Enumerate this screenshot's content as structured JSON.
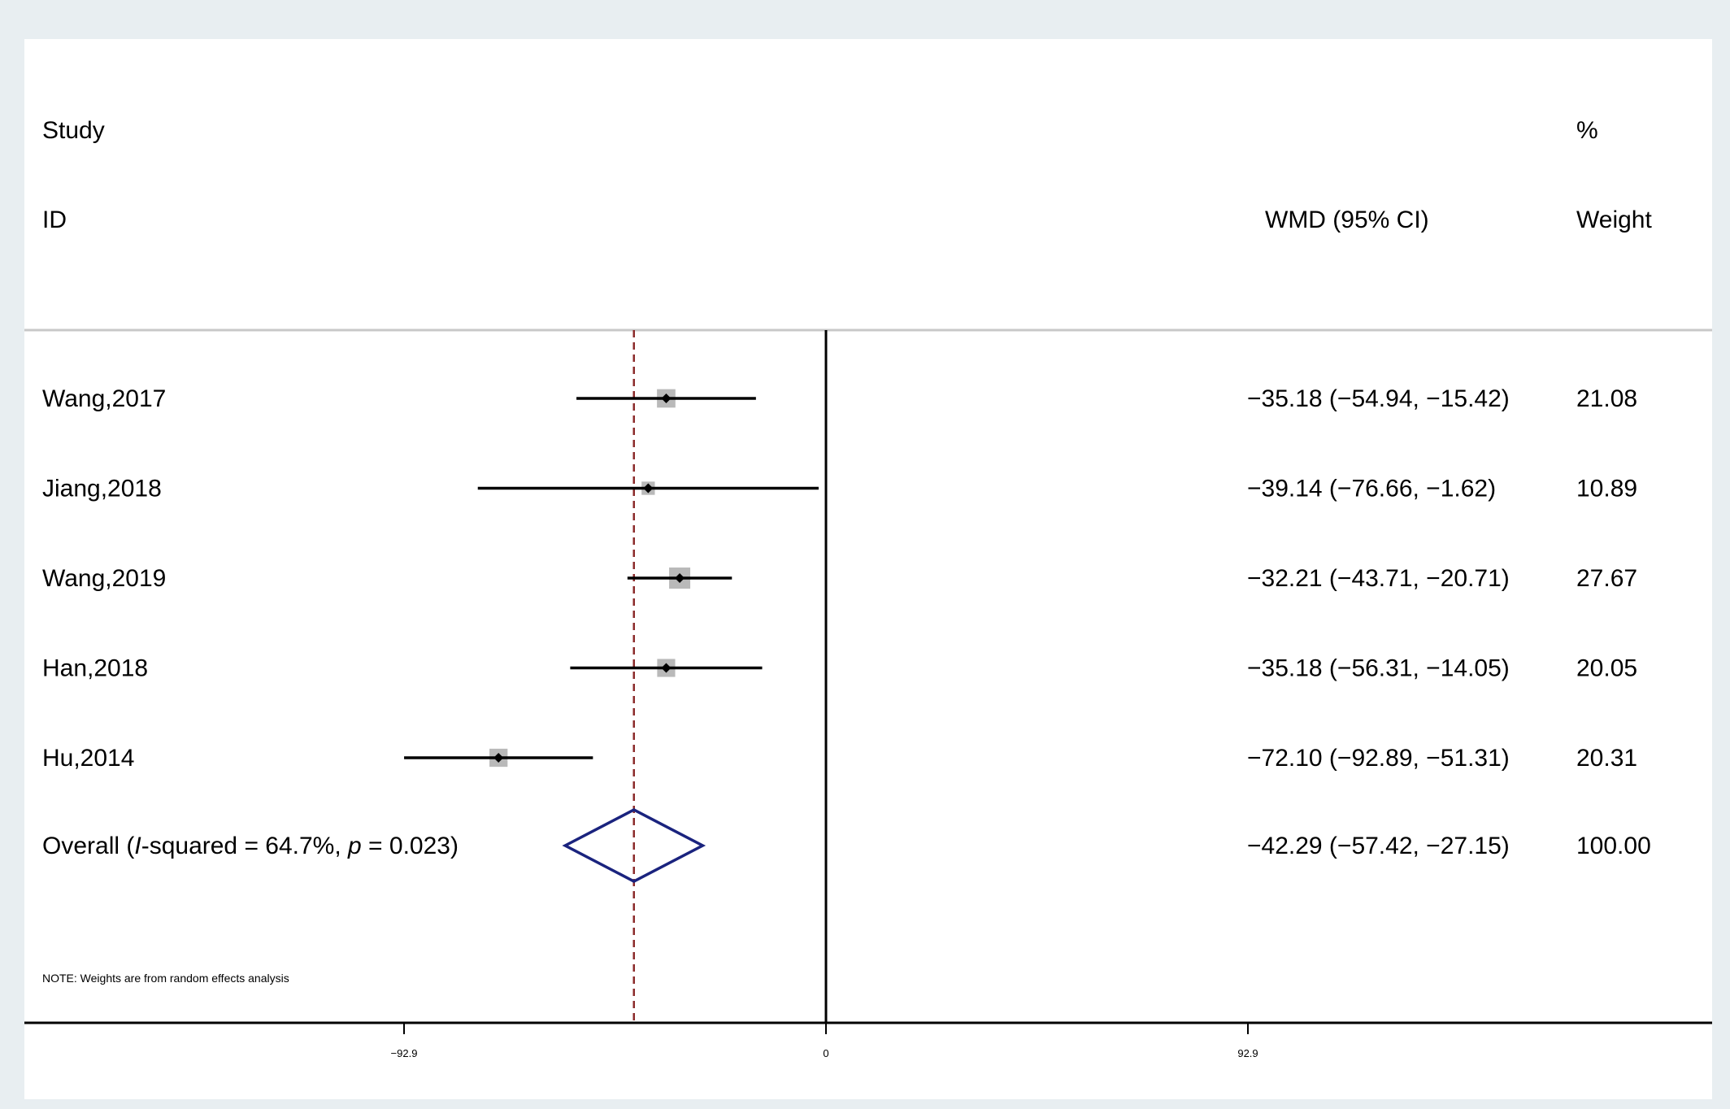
{
  "header": {
    "study_line1": "Study",
    "study_line2": "ID",
    "effect_label": "WMD (95% CI)",
    "weight_line1": "%",
    "weight_line2": "Weight"
  },
  "note": "NOTE: Weights are from random effects analysis",
  "colors": {
    "axis": "#000000",
    "ci_line": "#000000",
    "weight_box": "#b9b9b9",
    "point": "#000000",
    "reference_dashed": "#8b2a2a",
    "diamond": "#1a237e",
    "header_rule": "#c8c8c8"
  },
  "chart_data": {
    "type": "forest",
    "x_ticks": [
      {
        "value": -92.9,
        "label": "−92.9"
      },
      {
        "value": 0,
        "label": "0"
      },
      {
        "value": 92.9,
        "label": "92.9"
      }
    ],
    "xlim": [
      -175.6,
      192
    ],
    "null_line": 0,
    "overall_line": -42.29,
    "studies": [
      {
        "id": "Wang,2017",
        "effect": -35.18,
        "lower": -54.94,
        "upper": -15.42,
        "weight": 21.08,
        "ci_text": "−35.18 (−54.94, −15.42)",
        "weight_text": "21.08"
      },
      {
        "id": "Jiang,2018",
        "effect": -39.14,
        "lower": -76.66,
        "upper": -1.62,
        "weight": 10.89,
        "ci_text": "−39.14 (−76.66, −1.62)",
        "weight_text": "10.89"
      },
      {
        "id": "Wang,2019",
        "effect": -32.21,
        "lower": -43.71,
        "upper": -20.71,
        "weight": 27.67,
        "ci_text": "−32.21 (−43.71, −20.71)",
        "weight_text": "27.67"
      },
      {
        "id": "Han,2018",
        "effect": -35.18,
        "lower": -56.31,
        "upper": -14.05,
        "weight": 20.05,
        "ci_text": "−35.18 (−56.31, −14.05)",
        "weight_text": "20.05"
      },
      {
        "id": "Hu,2014",
        "effect": -72.1,
        "lower": -92.89,
        "upper": -51.31,
        "weight": 20.31,
        "ci_text": "−72.10 (−92.89, −51.31)",
        "weight_text": "20.31"
      }
    ],
    "overall": {
      "label_prefix": "Overall  (",
      "label_i": "I",
      "label_mid": "-squared = 64.7%, ",
      "label_p": "p",
      "label_suffix": " = 0.023)",
      "effect": -42.29,
      "lower": -57.42,
      "upper": -27.15,
      "weight": 100.0,
      "ci_text": "−42.29 (−57.42, −27.15)",
      "weight_text": "100.00"
    }
  }
}
